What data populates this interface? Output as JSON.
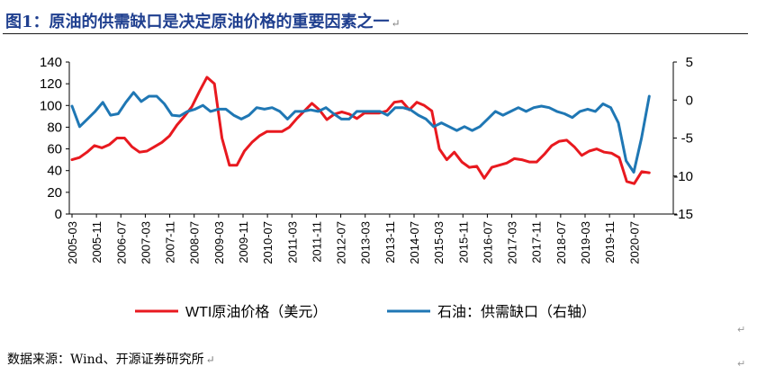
{
  "title": "图1：原油的供需缺口是决定原油价格的重要因素之一",
  "return_mark": "↵",
  "source": "数据来源：Wind、开源证券研究所",
  "chart_data": {
    "type": "line",
    "x_ticks": [
      "2005-03",
      "2005-11",
      "2006-07",
      "2007-03",
      "2007-11",
      "2008-07",
      "2009-03",
      "2009-11",
      "2010-07",
      "2011-03",
      "2011-11",
      "2012-07",
      "2013-03",
      "2013-11",
      "2014-07",
      "2015-03",
      "2015-11",
      "2016-07",
      "2017-03",
      "2017-11",
      "2018-07",
      "2019-03",
      "2019-11",
      "2020-07"
    ],
    "y_left": {
      "min": 0,
      "max": 140,
      "ticks": [
        0,
        20,
        40,
        60,
        80,
        100,
        120,
        140
      ]
    },
    "y_right": {
      "min": -15,
      "max": 5,
      "ticks": [
        -15,
        -10,
        -5,
        0,
        5
      ],
      "tick_labels": [
        "-15",
        "-10",
        "-5",
        "0",
        "5"
      ]
    },
    "legend_position": "bottom",
    "series": [
      {
        "name": "WTI原油价格（美元）",
        "color": "#e8191f",
        "axis": "left",
        "x_start": "2005-03",
        "values": [
          50,
          52,
          57,
          63,
          61,
          64,
          70,
          70,
          62,
          57,
          58,
          62,
          66,
          72,
          82,
          90,
          99,
          113,
          126,
          120,
          70,
          45,
          45,
          58,
          66,
          72,
          76,
          76,
          76,
          80,
          88,
          95,
          102,
          96,
          87,
          92,
          94,
          92,
          88,
          93,
          93,
          93,
          95,
          103,
          104,
          96,
          103,
          100,
          95,
          60,
          50,
          57,
          48,
          43,
          44,
          33,
          43,
          45,
          47,
          51,
          50,
          48,
          48,
          55,
          63,
          67,
          68,
          62,
          54,
          58,
          60,
          57,
          56,
          52,
          30,
          28,
          39,
          38
        ]
      },
      {
        "name": "石油：供需缺口（右轴）",
        "color": "#1f77b4",
        "axis": "right",
        "x_start": "2005-03",
        "values": [
          -0.8,
          -3.5,
          -2.5,
          -1.5,
          -0.3,
          -2.0,
          -1.8,
          -0.3,
          1.0,
          -0.2,
          0.5,
          0.5,
          -0.5,
          -2.0,
          -2.1,
          -1.5,
          -1.2,
          -0.7,
          -1.5,
          -1.2,
          -1.2,
          -2.0,
          -2.5,
          -2.0,
          -1.0,
          -1.2,
          -1.0,
          -1.5,
          -2.5,
          -1.5,
          -1.5,
          -1.3,
          -1.5,
          -1.0,
          -1.8,
          -2.5,
          -2.5,
          -1.5,
          -1.5,
          -1.5,
          -1.5,
          -2.0,
          -1.0,
          -1.0,
          -1.3,
          -2.0,
          -2.5,
          -3.5,
          -3.0,
          -3.5,
          -4.0,
          -3.5,
          -4.0,
          -3.5,
          -2.5,
          -1.5,
          -2.0,
          -1.5,
          -1.0,
          -1.5,
          -1.0,
          -0.8,
          -1.0,
          -1.5,
          -1.8,
          -2.3,
          -1.5,
          -1.2,
          -1.5,
          -0.5,
          -1.0,
          -3.0,
          -8.0,
          -9.5,
          -5.0,
          0.5
        ]
      }
    ]
  }
}
